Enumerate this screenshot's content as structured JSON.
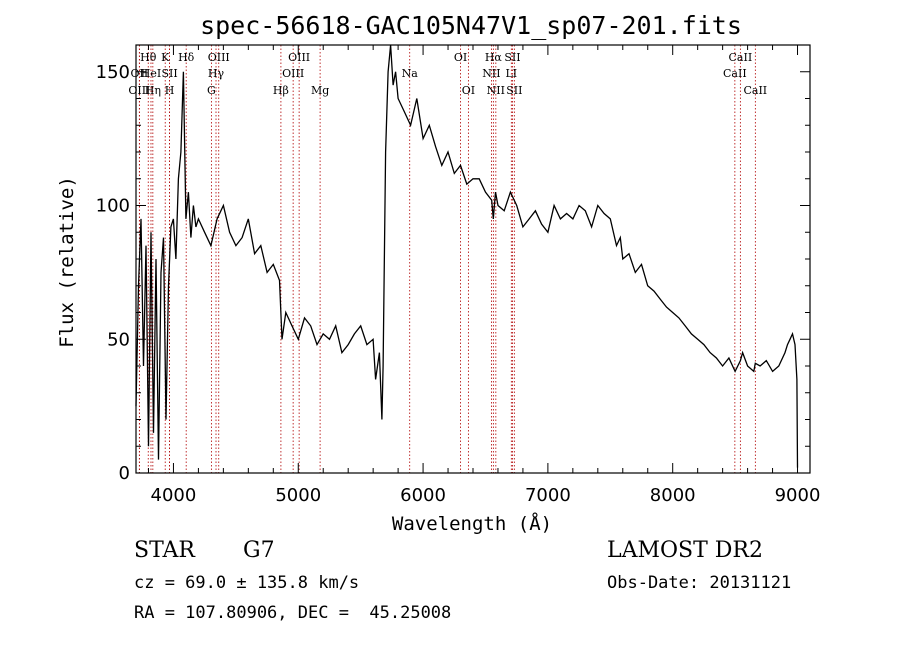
{
  "chart_data": {
    "type": "line",
    "title": "spec-56618-GAC105N47V1_sp07-201.fits",
    "xlabel": "Wavelength (Å)",
    "ylabel": "Flux (relative)",
    "xlim": [
      3700,
      9100
    ],
    "ylim": [
      0,
      160
    ],
    "xticks": [
      4000,
      5000,
      6000,
      7000,
      8000,
      9000
    ],
    "yticks": [
      0,
      50,
      100,
      150
    ],
    "series": [
      {
        "x": [
          3700,
          3720,
          3740,
          3760,
          3780,
          3800,
          3820,
          3840,
          3860,
          3880,
          3900,
          3920,
          3940,
          3960,
          3980,
          4000,
          4020,
          4040,
          4060,
          4080,
          4100,
          4120,
          4140,
          4160,
          4180,
          4200,
          4250,
          4300,
          4350,
          4400,
          4450,
          4500,
          4550,
          4600,
          4650,
          4700,
          4750,
          4800,
          4850,
          4870,
          4900,
          4950,
          5000,
          5050,
          5100,
          5150,
          5200,
          5250,
          5300,
          5350,
          5400,
          5450,
          5500,
          5550,
          5600,
          5620,
          5650,
          5670,
          5680,
          5700,
          5720,
          5740,
          5760,
          5780,
          5800,
          5850,
          5900,
          5950,
          6000,
          6050,
          6100,
          6150,
          6200,
          6250,
          6300,
          6350,
          6400,
          6450,
          6500,
          6550,
          6563,
          6580,
          6600,
          6650,
          6700,
          6750,
          6800,
          6850,
          6900,
          6950,
          7000,
          7050,
          7100,
          7150,
          7200,
          7250,
          7300,
          7350,
          7400,
          7450,
          7500,
          7550,
          7580,
          7600,
          7650,
          7700,
          7750,
          7800,
          7850,
          7900,
          7950,
          8000,
          8050,
          8100,
          8150,
          8200,
          8250,
          8300,
          8350,
          8400,
          8450,
          8500,
          8542,
          8560,
          8600,
          8650,
          8662,
          8700,
          8750,
          8800,
          8850,
          8900,
          8920,
          8940,
          8960,
          8980,
          8995,
          9000
        ],
        "y": [
          25,
          70,
          95,
          40,
          85,
          10,
          90,
          15,
          80,
          5,
          75,
          88,
          20,
          70,
          92,
          95,
          80,
          110,
          120,
          150,
          95,
          105,
          88,
          100,
          92,
          95,
          90,
          85,
          95,
          100,
          90,
          85,
          88,
          95,
          82,
          85,
          75,
          78,
          72,
          50,
          60,
          55,
          50,
          58,
          55,
          48,
          52,
          50,
          55,
          45,
          48,
          52,
          55,
          48,
          50,
          35,
          45,
          20,
          40,
          120,
          150,
          160,
          145,
          150,
          140,
          135,
          130,
          140,
          125,
          130,
          122,
          115,
          120,
          112,
          115,
          108,
          110,
          110,
          105,
          102,
          95,
          105,
          100,
          98,
          105,
          100,
          92,
          95,
          98,
          93,
          90,
          100,
          95,
          97,
          95,
          100,
          98,
          92,
          100,
          97,
          95,
          85,
          88,
          80,
          82,
          75,
          78,
          70,
          68,
          65,
          62,
          60,
          58,
          55,
          52,
          50,
          48,
          45,
          43,
          40,
          43,
          38,
          42,
          45,
          40,
          38,
          41,
          40,
          42,
          38,
          40,
          45,
          48,
          50,
          52,
          48,
          35,
          2
        ]
      }
    ],
    "lines": [
      {
        "label": "Hθ",
        "x": 3798,
        "row": 0
      },
      {
        "label": "OII",
        "x": 3727,
        "row": 1
      },
      {
        "label": "OIII",
        "x": 3727,
        "row": 2
      },
      {
        "label": "HeI",
        "x": 3820,
        "row": 1
      },
      {
        "label": "Hη",
        "x": 3835,
        "row": 2
      },
      {
        "label": "K",
        "x": 3934,
        "row": 0
      },
      {
        "label": "SII",
        "x": 3969,
        "row": 1
      },
      {
        "label": "H",
        "x": 3969,
        "row": 2
      },
      {
        "label": "Hδ",
        "x": 4102,
        "row": 0
      },
      {
        "label": "OIII",
        "x": 4363,
        "row": 0
      },
      {
        "label": "Hγ",
        "x": 4341,
        "row": 1
      },
      {
        "label": "G",
        "x": 4304,
        "row": 2
      },
      {
        "label": "Hβ",
        "x": 4861,
        "row": 2
      },
      {
        "label": "OIII",
        "x": 5007,
        "row": 0
      },
      {
        "label": "OIII",
        "x": 4959,
        "row": 1
      },
      {
        "label": "Mg",
        "x": 5175,
        "row": 2
      },
      {
        "label": "Na",
        "x": 5893,
        "row": 1
      },
      {
        "label": "OI",
        "x": 6300,
        "row": 0
      },
      {
        "label": "OI",
        "x": 6363,
        "row": 2
      },
      {
        "label": "Hα",
        "x": 6563,
        "row": 0
      },
      {
        "label": "SII",
        "x": 6716,
        "row": 0
      },
      {
        "label": "NII",
        "x": 6548,
        "row": 1
      },
      {
        "label": "LI",
        "x": 6707,
        "row": 1
      },
      {
        "label": "NII",
        "x": 6583,
        "row": 2
      },
      {
        "label": "SII",
        "x": 6731,
        "row": 2
      },
      {
        "label": "CaII",
        "x": 8542,
        "row": 0
      },
      {
        "label": "CaII",
        "x": 8498,
        "row": 1
      },
      {
        "label": "CaII",
        "x": 8662,
        "row": 2
      }
    ],
    "grid": false,
    "legend": "none"
  },
  "info": {
    "object_class": "STAR",
    "subclass": "G7",
    "survey": "LAMOST DR2",
    "redshift": "cz = 69.0 ± 135.8 km/s",
    "obs_date": "Obs-Date: 20131121",
    "coords": "RA = 107.80906, DEC =  45.25008"
  },
  "colors": {
    "spectrum": "#000000",
    "line_marker": "#b00000",
    "axes": "#000000"
  }
}
